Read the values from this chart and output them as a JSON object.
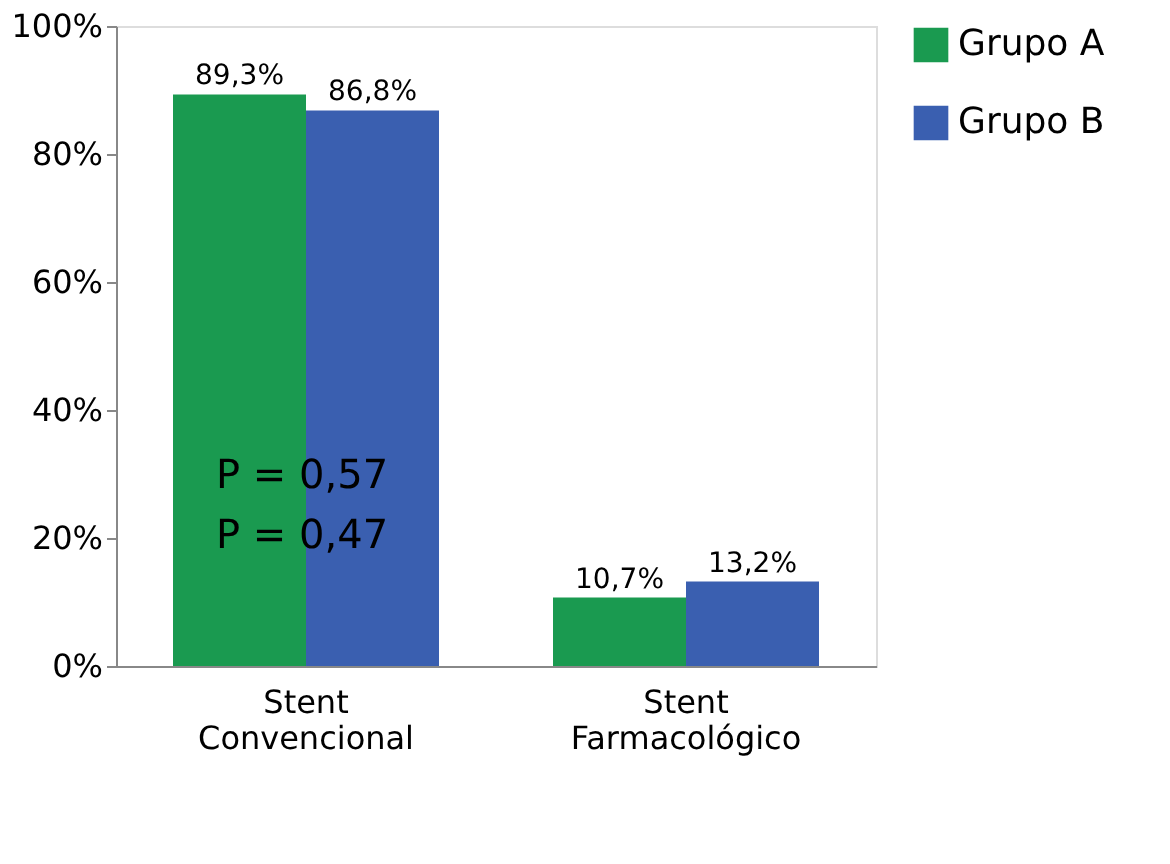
{
  "chart_data": {
    "type": "bar",
    "categories": [
      "Stent\nConvencional",
      "Stent\nFarmacológico"
    ],
    "series": [
      {
        "name": "Grupo A",
        "color": "#1a9a50",
        "values": [
          89.3,
          10.7
        ],
        "value_labels": [
          "89,3%",
          "10,7%"
        ]
      },
      {
        "name": "Grupo B",
        "color": "#3a5fb0",
        "values": [
          86.8,
          13.2
        ],
        "value_labels": [
          "86,8%",
          "13,2%"
        ]
      }
    ],
    "ylim": [
      0,
      100
    ],
    "yticks": [
      {
        "value": 0,
        "label": "0%"
      },
      {
        "value": 20,
        "label": "20%"
      },
      {
        "value": 40,
        "label": "40%"
      },
      {
        "value": 60,
        "label": "60%"
      },
      {
        "value": 80,
        "label": "80%"
      },
      {
        "value": 100,
        "label": "100%"
      }
    ],
    "annotations": [
      "P = 0,57",
      "P = 0,47"
    ],
    "grid": false,
    "legend": "right"
  }
}
